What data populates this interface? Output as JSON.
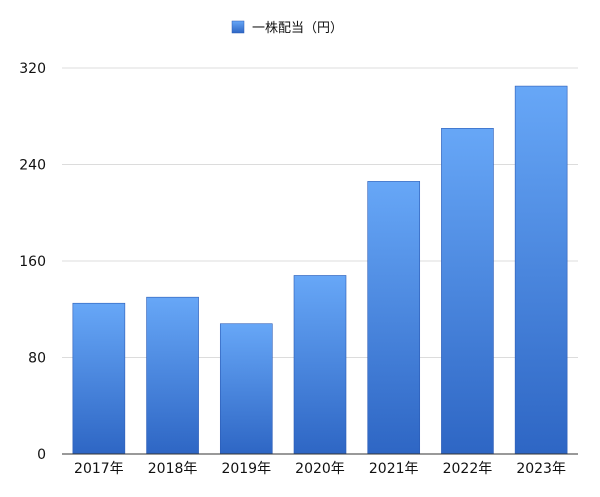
{
  "chart_data": {
    "type": "bar",
    "title": "",
    "xlabel": "",
    "ylabel": "",
    "categories": [
      "2017年",
      "2018年",
      "2019年",
      "2020年",
      "2021年",
      "2022年",
      "2023年"
    ],
    "series": [
      {
        "name": "一株配当（円）",
        "values": [
          125,
          130,
          108,
          148,
          226,
          270,
          305
        ]
      }
    ],
    "ylim": [
      0,
      320
    ],
    "yticks": [
      0,
      80,
      160,
      240,
      320
    ],
    "grid": true,
    "legend_position": "top-center",
    "colors": {
      "bar_top": "#67a7f7",
      "bar_bottom": "#2e66c4",
      "bar_stroke": "#2a5bb5",
      "grid": "#dcdcdc",
      "axis": "#333333"
    }
  }
}
